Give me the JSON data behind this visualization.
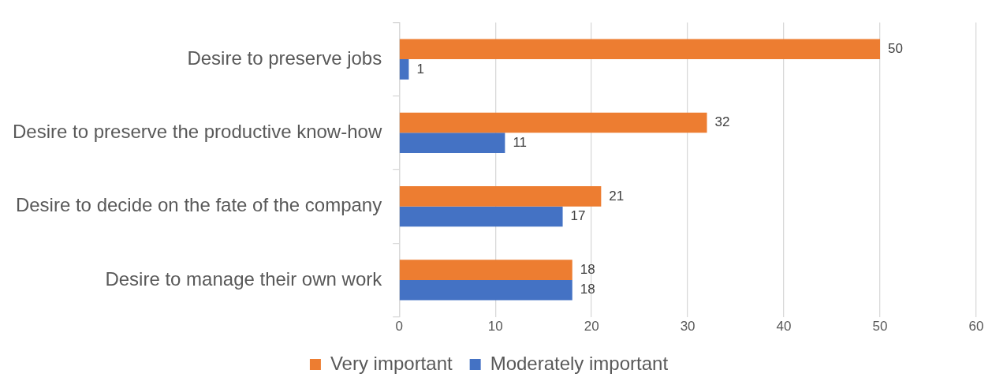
{
  "chart_data": {
    "type": "bar",
    "orientation": "horizontal",
    "categories": [
      "Desire to preserve jobs",
      "Desire to preserve the productive know-how",
      "Desire to decide on the fate of the company",
      "Desire to manage their own work"
    ],
    "series": [
      {
        "name": "Very important",
        "color": "#ed7d31",
        "values": [
          50,
          32,
          21,
          18
        ]
      },
      {
        "name": "Moderately important",
        "color": "#4472c4",
        "values": [
          1,
          11,
          17,
          18
        ]
      }
    ],
    "xlim": [
      0,
      60
    ],
    "xticks": [
      0,
      10,
      20,
      30,
      40,
      50,
      60
    ],
    "grid": "x",
    "legend": "bottom",
    "data_labels": true
  }
}
